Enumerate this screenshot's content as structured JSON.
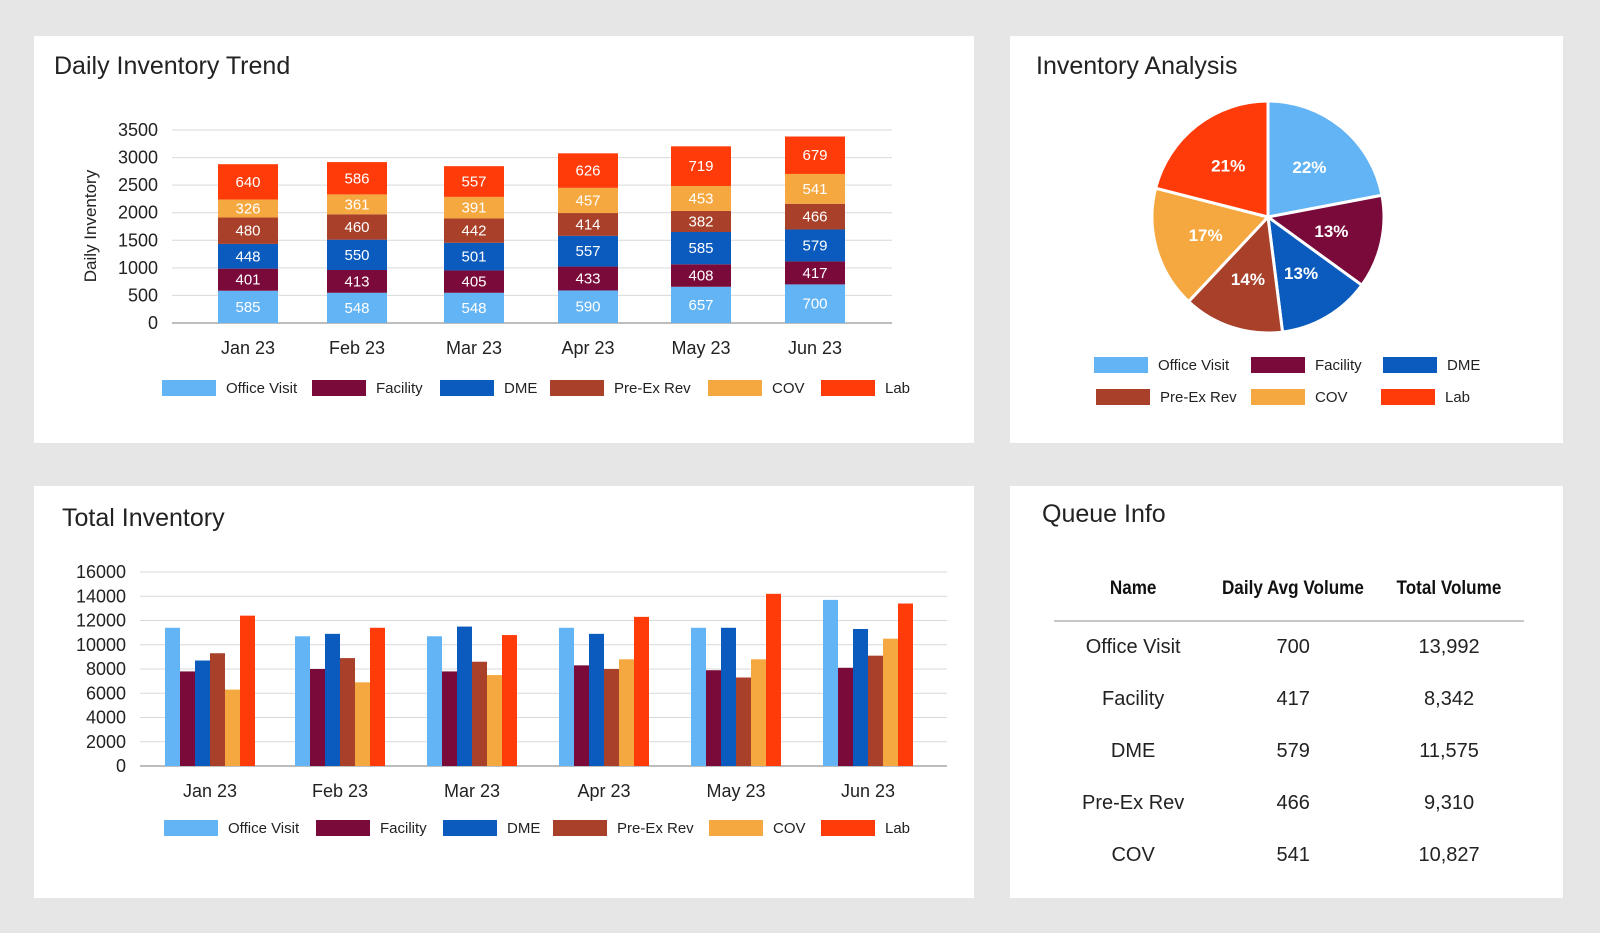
{
  "cards": {
    "trend_title": "Daily Inventory Trend",
    "pie_title": "Inventory Analysis",
    "total_title": "Total Inventory",
    "queue_title": "Queue Info"
  },
  "colors": {
    "Office Visit": "#63b4f5",
    "Facility": "#7a0a3a",
    "DME": "#0a5bbd",
    "Pre-Ex Rev": "#a8402a",
    "COV": "#f6a840",
    "Lab": "#ff3b0a"
  },
  "chart_data": [
    {
      "id": "trend",
      "type": "bar",
      "stacked": true,
      "title": "Daily Inventory Trend",
      "xlabel": "",
      "ylabel": "Daily Inventory",
      "ylim": [
        0,
        3500
      ],
      "yticks": [
        0,
        500,
        1000,
        1500,
        2000,
        2500,
        3000,
        3500
      ],
      "categories": [
        "Jan 23",
        "Feb 23",
        "Mar 23",
        "Apr 23",
        "May 23",
        "Jun 23"
      ],
      "series": [
        {
          "name": "Office Visit",
          "values": [
            585,
            548,
            548,
            590,
            657,
            700
          ]
        },
        {
          "name": "Facility",
          "values": [
            401,
            413,
            405,
            433,
            408,
            417
          ]
        },
        {
          "name": "DME",
          "values": [
            448,
            550,
            501,
            557,
            585,
            579
          ]
        },
        {
          "name": "Pre-Ex Rev",
          "values": [
            480,
            460,
            442,
            414,
            382,
            466
          ]
        },
        {
          "name": "COV",
          "values": [
            326,
            361,
            391,
            457,
            453,
            541
          ]
        },
        {
          "name": "Lab",
          "values": [
            640,
            586,
            557,
            626,
            719,
            679
          ]
        }
      ],
      "legend": "bottom"
    },
    {
      "id": "pie",
      "type": "pie",
      "title": "Inventory Analysis",
      "slices": [
        {
          "name": "Office Visit",
          "value": 22,
          "label": "22%"
        },
        {
          "name": "Facility",
          "value": 13,
          "label": "13%"
        },
        {
          "name": "DME",
          "value": 13,
          "label": "13%"
        },
        {
          "name": "Pre-Ex Rev",
          "value": 14,
          "label": "14%"
        },
        {
          "name": "COV",
          "value": 17,
          "label": "17%"
        },
        {
          "name": "Lab",
          "value": 21,
          "label": "21%"
        }
      ],
      "legend": "bottom"
    },
    {
      "id": "total",
      "type": "bar",
      "stacked": false,
      "title": "Total Inventory",
      "xlabel": "",
      "ylabel": "",
      "ylim": [
        0,
        16000
      ],
      "yticks": [
        0,
        2000,
        4000,
        6000,
        8000,
        10000,
        12000,
        14000,
        16000
      ],
      "categories": [
        "Jan 23",
        "Feb 23",
        "Mar 23",
        "Apr 23",
        "May 23",
        "Jun 23"
      ],
      "series": [
        {
          "name": "Office Visit",
          "values": [
            11400,
            10700,
            10700,
            11400,
            11400,
            13700
          ]
        },
        {
          "name": "Facility",
          "values": [
            7800,
            8000,
            7800,
            8300,
            7900,
            8100
          ]
        },
        {
          "name": "DME",
          "values": [
            8700,
            10900,
            11500,
            10900,
            11400,
            11300
          ]
        },
        {
          "name": "Pre-Ex Rev",
          "values": [
            9300,
            8900,
            8600,
            8000,
            7300,
            9100
          ]
        },
        {
          "name": "COV",
          "values": [
            6300,
            6900,
            7500,
            8800,
            8800,
            10500
          ]
        },
        {
          "name": "Lab",
          "values": [
            12400,
            11400,
            10800,
            12300,
            14200,
            13400
          ]
        }
      ],
      "legend": "bottom"
    }
  ],
  "queue": {
    "headers": [
      "Name",
      "Daily Avg Volume",
      "Total Volume"
    ],
    "rows": [
      [
        "Office Visit",
        "700",
        "13,992"
      ],
      [
        "Facility",
        "417",
        "8,342"
      ],
      [
        "DME",
        "579",
        "11,575"
      ],
      [
        "Pre-Ex Rev",
        "466",
        "9,310"
      ],
      [
        "COV",
        "541",
        "10,827"
      ]
    ]
  }
}
